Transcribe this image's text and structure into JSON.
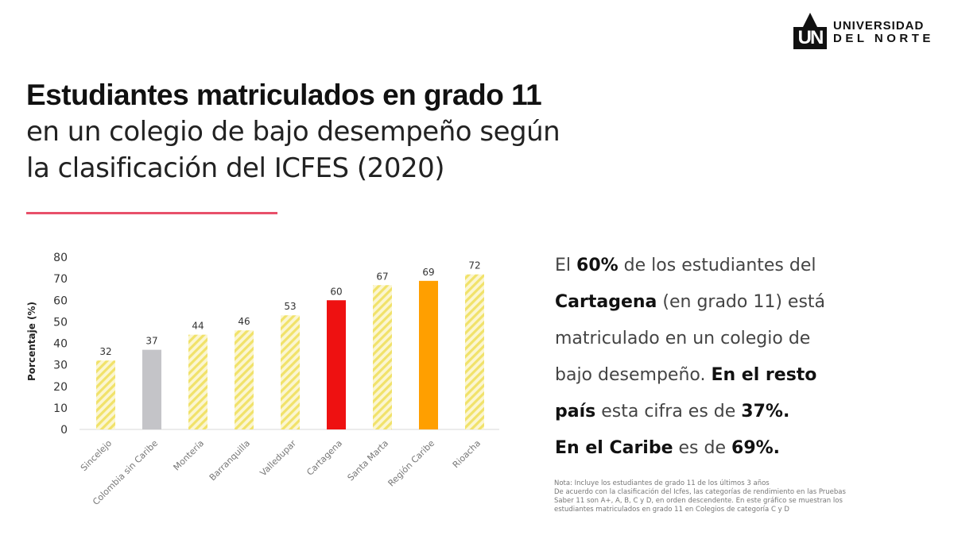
{
  "logo": {
    "mark": "UN",
    "line1": "UNIVERSIDAD",
    "line2": "DEL NORTE"
  },
  "title": {
    "bold": "Estudiantes matriculados en grado 11",
    "line2": "en un colegio de bajo desempeño según",
    "line3": "la clasificación del ICFES (2020)"
  },
  "colors": {
    "accent_line": "#e8506a",
    "hatch": "#f1e26a",
    "gray": "#c4c4c8",
    "red": "#ee1111",
    "orange": "#ff9f00"
  },
  "chart_data": {
    "type": "bar",
    "title": "",
    "xlabel": "",
    "ylabel": "Porcentaje (%)",
    "ylim": [
      0,
      80
    ],
    "yticks": [
      0,
      10,
      20,
      30,
      40,
      50,
      60,
      70,
      80
    ],
    "grid": false,
    "categories": [
      "Sincelejo",
      "Colombia sin Caribe",
      "Montería",
      "Barranquilla",
      "Valledupar",
      "Cartagena",
      "Santa Marta",
      "Región Caribe",
      "Rioacha"
    ],
    "values": [
      32,
      37,
      44,
      46,
      53,
      60,
      67,
      69,
      72
    ],
    "bar_styles": [
      "hatch",
      "gray",
      "hatch",
      "hatch",
      "hatch",
      "red",
      "hatch",
      "orange",
      "hatch"
    ]
  },
  "side_text": {
    "p1": "El ",
    "b1": "60%",
    "p2": " de los estudiantes del",
    "b2": "Cartagena",
    "p3": " (en grado 11) está",
    "p4": "matriculado en un colegio de",
    "p5": "bajo desempeño. ",
    "b3": "En el resto",
    "b4": "país",
    "p6": " esta cifra es de ",
    "b5": "37%.",
    "b6": "En el Caribe",
    "p7": " es de ",
    "b7": "69%."
  },
  "note": {
    "line1": "Nota: Incluye los estudiantes de grado 11 de los últimos 3 años",
    "line2": "De acuerdo con la clasificación del Icfes, las categorías de rendimiento en las Pruebas",
    "line3": "Saber 11 son A+, A, B, C y D, en orden descendente. En este gráfico se muestran los",
    "line4": "estudiantes matriculados en grado 11 en Colegios de categoría C y D"
  }
}
